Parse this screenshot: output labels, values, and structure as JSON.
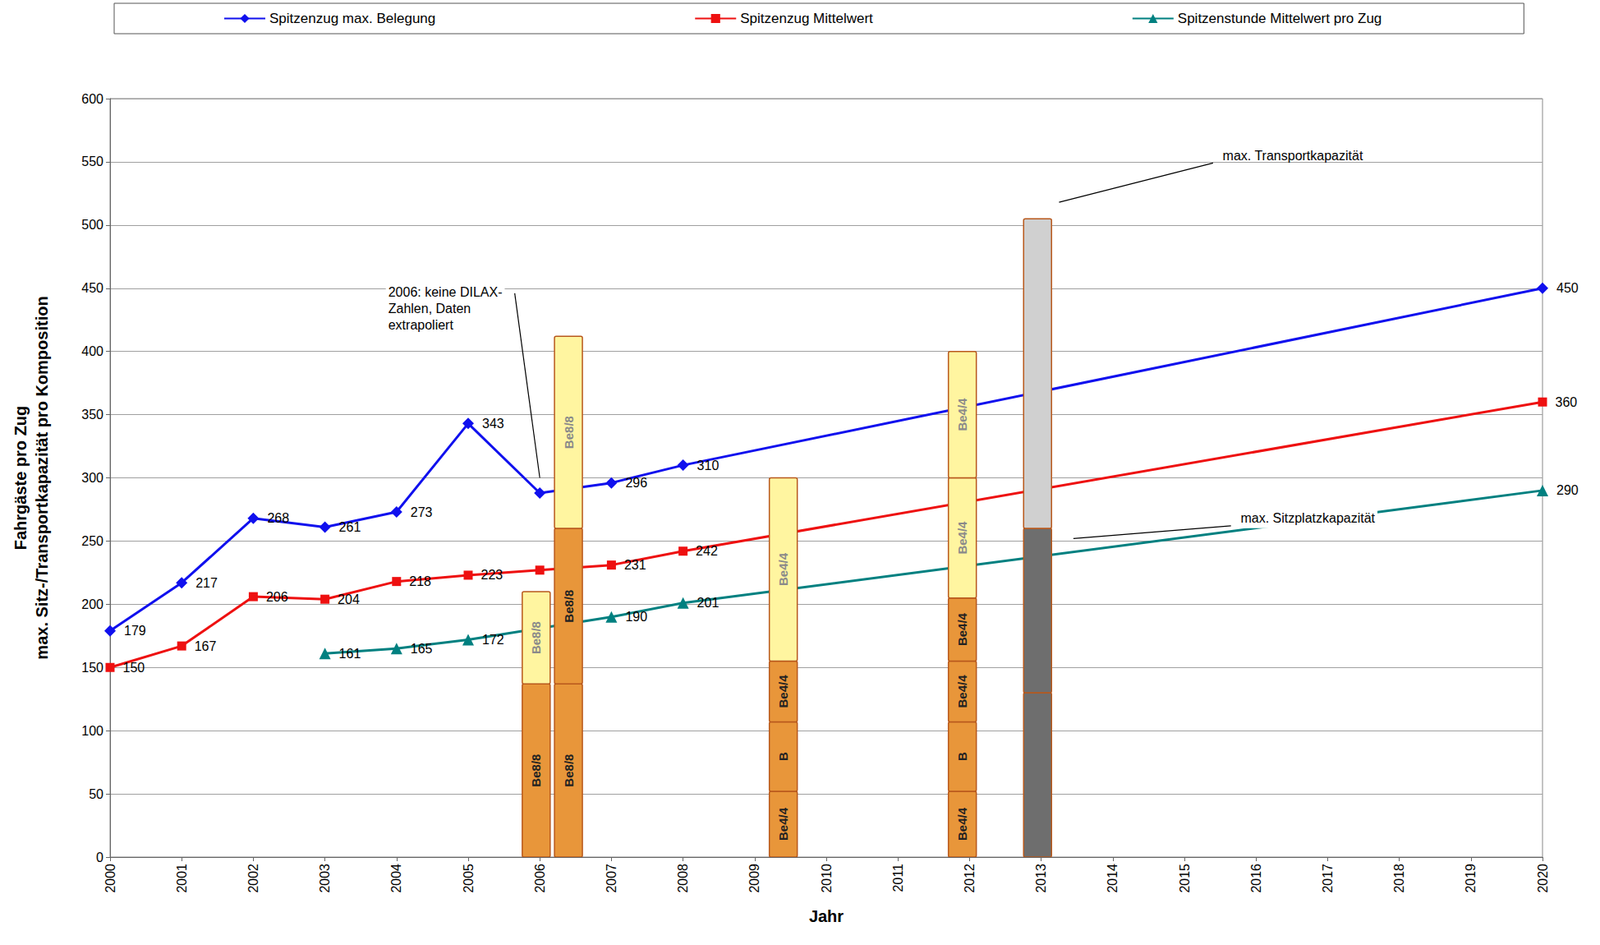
{
  "chart_data": {
    "type": "line",
    "x_label": "Jahr",
    "y_label": [
      "Fahrgäste pro Zug",
      "max. Sitz-/Transportkapazität pro Komposition"
    ],
    "xlim": [
      2000,
      2020
    ],
    "xticks": [
      2000,
      2001,
      2002,
      2003,
      2004,
      2005,
      2006,
      2007,
      2008,
      2009,
      2010,
      2011,
      2012,
      2013,
      2014,
      2015,
      2016,
      2017,
      2018,
      2019,
      2020
    ],
    "ylim": [
      0,
      600
    ],
    "yticks": [
      0,
      50,
      100,
      150,
      200,
      250,
      300,
      350,
      400,
      450,
      500,
      550,
      600
    ],
    "grid": true,
    "legend": "top",
    "data_labels": true,
    "series": [
      {
        "name": "Spitzenzug max. Belegung",
        "color": "#1010ee",
        "marker": "diamond",
        "x": [
          2000,
          2001,
          2002,
          2003,
          2004,
          2005,
          2006,
          2007,
          2008,
          2020
        ],
        "values": [
          179,
          217,
          268,
          261,
          273,
          343,
          288,
          296,
          310,
          450
        ],
        "value_labels": [
          "179",
          "217",
          "268",
          "261",
          "273",
          "343",
          null,
          "296",
          "310",
          "450"
        ]
      },
      {
        "name": "Spitzenzug Mittelwert",
        "color": "#ee1010",
        "marker": "square",
        "x": [
          2000,
          2001,
          2002,
          2003,
          2004,
          2005,
          2006,
          2007,
          2008,
          2020
        ],
        "values": [
          150,
          167,
          206,
          204,
          218,
          223,
          227,
          231,
          242,
          360
        ],
        "value_labels": [
          "150",
          "167",
          "206",
          "204",
          "218",
          "223",
          null,
          "231",
          "242",
          "360"
        ]
      },
      {
        "name": "Spitzenstunde Mittelwert pro Zug",
        "color": "#008080",
        "marker": "triangle",
        "x": [
          2003,
          2004,
          2005,
          2007,
          2008,
          2020
        ],
        "values": [
          161,
          165,
          172,
          190,
          201,
          290
        ],
        "value_labels": [
          "161",
          "165",
          "172",
          "190",
          "201",
          "290"
        ]
      }
    ],
    "compositions": [
      {
        "x": 2005.95,
        "segments": [
          {
            "value": 137,
            "label": "Be8/8",
            "color": "#e8963a"
          },
          {
            "value": 73,
            "label": "Be8/8",
            "color": "#fff5a0"
          }
        ]
      },
      {
        "x": 2006.4,
        "segments": [
          {
            "value": 137,
            "label": "Be8/8",
            "color": "#e8963a"
          },
          {
            "value": 123,
            "label": "Be8/8",
            "color": "#e8963a"
          },
          {
            "value": 152,
            "label": "Be8/8",
            "color": "#fff5a0"
          }
        ]
      },
      {
        "x": 2009.4,
        "segments": [
          {
            "value": 52,
            "label": "Be4/4",
            "color": "#e8963a"
          },
          {
            "value": 55,
            "label": "B",
            "color": "#e8963a"
          },
          {
            "value": 48,
            "label": "Be4/4",
            "color": "#e8963a"
          },
          {
            "value": 145,
            "label": "Be4/4",
            "color": "#fff5a0"
          }
        ]
      },
      {
        "x": 2011.9,
        "segments": [
          {
            "value": 52,
            "label": "Be4/4",
            "color": "#e8963a"
          },
          {
            "value": 55,
            "label": "B",
            "color": "#e8963a"
          },
          {
            "value": 48,
            "label": "Be4/4",
            "color": "#e8963a"
          },
          {
            "value": 50,
            "label": "Be4/4",
            "color": "#e8963a"
          },
          {
            "value": 95,
            "label": "Be4/4",
            "color": "#fff5a0"
          },
          {
            "value": 100,
            "label": "Be4/4",
            "color": "#fff5a0"
          }
        ]
      },
      {
        "x": 2012.95,
        "segments": [
          {
            "value": 130,
            "color": "#6e6e6e"
          },
          {
            "value": 130,
            "color": "#6e6e6e"
          },
          {
            "value": 245,
            "color": "#d0d0d0"
          }
        ]
      }
    ],
    "annotations": [
      {
        "text": [
          "max. Transportkapazität"
        ]
      },
      {
        "text": [
          "max. Sitzplatzkapazität"
        ]
      },
      {
        "text": [
          "2006: keine DILAX-",
          "Zahlen, Daten",
          "extrapoliert"
        ]
      }
    ]
  }
}
